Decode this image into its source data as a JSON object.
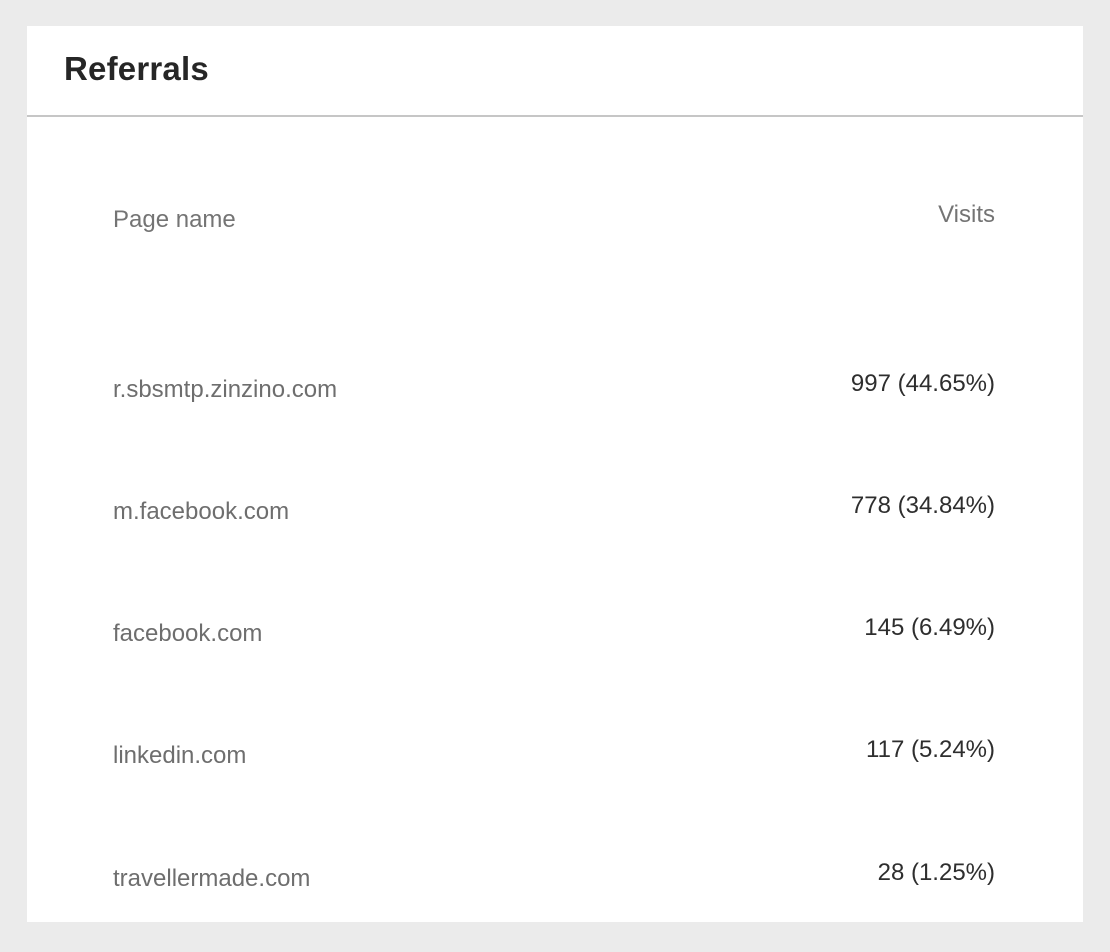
{
  "card": {
    "title": "Referrals"
  },
  "table": {
    "columns": {
      "name": "Page name",
      "visits": "Visits"
    },
    "rows": [
      {
        "name": "r.sbsmtp.zinzino.com",
        "visits": "997 (44.65%)"
      },
      {
        "name": "m.facebook.com",
        "visits": "778 (34.84%)"
      },
      {
        "name": "facebook.com",
        "visits": "145 (6.49%)"
      },
      {
        "name": "linkedin.com",
        "visits": "117 (5.24%)"
      },
      {
        "name": "travellermade.com",
        "visits": "28 (1.25%)"
      }
    ]
  }
}
